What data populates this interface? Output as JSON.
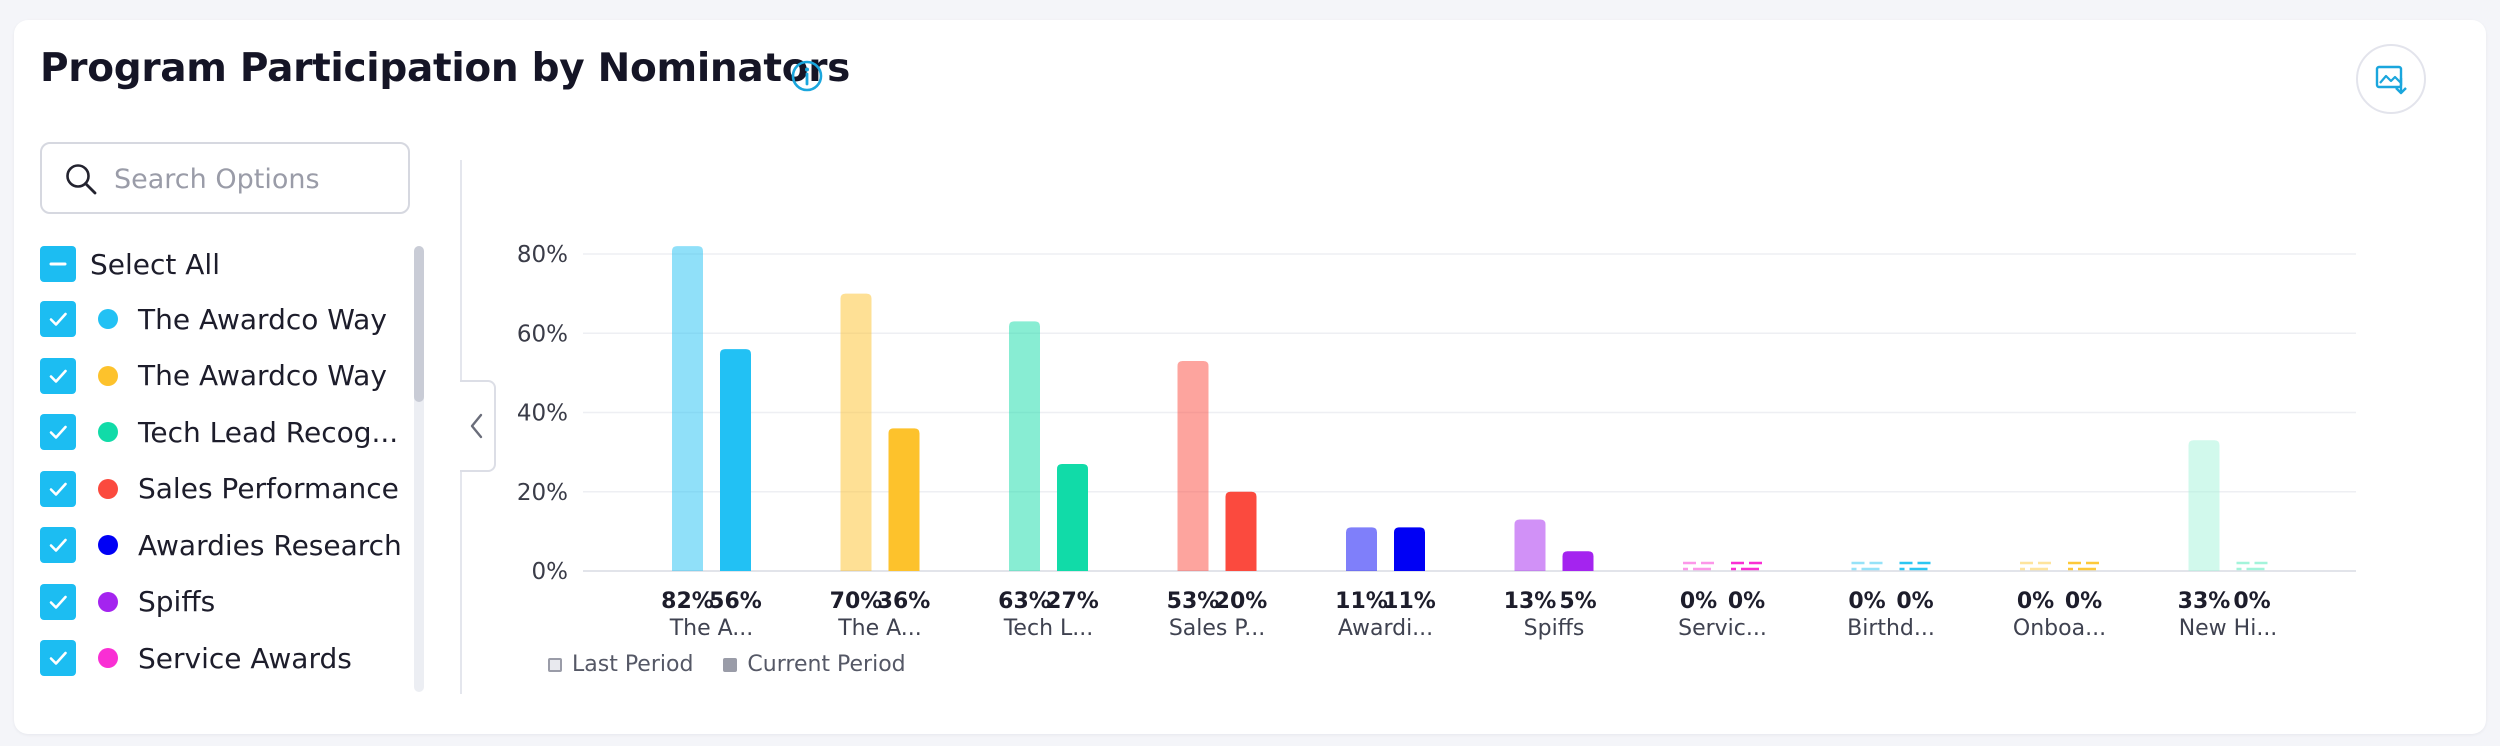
{
  "header": {
    "title": "Program Participation by Nominators",
    "info_icon": "info-icon",
    "export_icon": "image-download-icon"
  },
  "search": {
    "placeholder": "Search Options",
    "value": ""
  },
  "options": {
    "select_all_label": "Select All",
    "items": [
      {
        "label": "The Awardco Way",
        "color": "#22c1f4",
        "checked": true
      },
      {
        "label": "The Awardco Way",
        "color": "#fdc22c",
        "checked": true
      },
      {
        "label": "Tech Lead Recog...",
        "color": "#11dba8",
        "checked": true
      },
      {
        "label": "Sales Performance",
        "color": "#fb4a3e",
        "checked": true
      },
      {
        "label": "Awardies Research",
        "color": "#0000f5",
        "checked": true
      },
      {
        "label": "Spiffs",
        "color": "#a424ef",
        "checked": true
      },
      {
        "label": "Service Awards",
        "color": "#f92fd4",
        "checked": true
      }
    ]
  },
  "chart_data": {
    "type": "bar",
    "categories": [
      "The A...",
      "The A...",
      "Tech L...",
      "Sales P...",
      "Awardi...",
      "Spiffs",
      "Servic...",
      "Birthd...",
      "Onboa...",
      "New Hi..."
    ],
    "colors": [
      "#22c1f4",
      "#fdc22c",
      "#11dba8",
      "#fb4a3e",
      "#0000f5",
      "#a424ef",
      "#f92fd4",
      "#2bc6f2",
      "#fdc93a",
      "#a3f4da"
    ],
    "series": [
      {
        "name": "Last Period",
        "values": [
          82,
          70,
          63,
          53,
          11,
          13,
          0,
          0,
          0,
          33
        ]
      },
      {
        "name": "Current Period",
        "values": [
          56,
          36,
          27,
          20,
          11,
          5,
          0,
          0,
          0,
          0
        ]
      }
    ],
    "value_labels": [
      [
        "82%",
        "56%"
      ],
      [
        "70%",
        "36%"
      ],
      [
        "63%",
        "27%"
      ],
      [
        "53%",
        "20%"
      ],
      [
        "11%",
        "11%"
      ],
      [
        "13%",
        "5%"
      ],
      [
        "0%",
        "0%"
      ],
      [
        "0%",
        "0%"
      ],
      [
        "0%",
        "0%"
      ],
      [
        "33%",
        "0%"
      ]
    ],
    "yticks": [
      "0%",
      "20%",
      "40%",
      "60%",
      "80%"
    ],
    "ytick_values": [
      0,
      20,
      40,
      60,
      80
    ],
    "ylim": [
      0,
      80
    ],
    "grid": true,
    "legend_position": "bottom-left",
    "title": "",
    "xlabel": "",
    "ylabel": ""
  },
  "legend": {
    "last_label": "Last Period",
    "current_label": "Current Period"
  }
}
